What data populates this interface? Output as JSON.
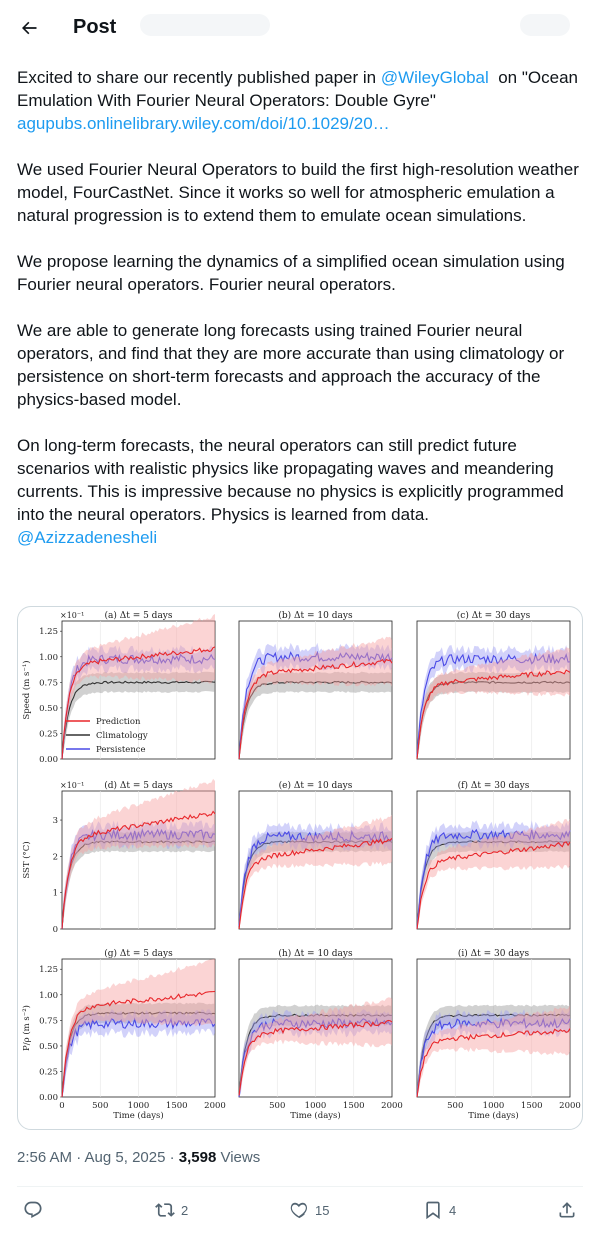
{
  "header": {
    "title": "Post"
  },
  "tweet": {
    "paragraphs": [
      {
        "parts": [
          {
            "t": "Excited to share our recently published paper in "
          },
          {
            "t": "@WileyGlobal",
            "link": true
          },
          {
            "t": "  on \"Ocean Emulation With Fourier Neural Operators: Double Gyre\"\n"
          },
          {
            "t": "agupubs.onlinelibrary.wiley.com/doi/10.1029/20…",
            "link": true
          }
        ]
      },
      {
        "parts": [
          {
            "t": "We used Fourier Neural Operators to build the first high-resolution weather model, FourCastNet. Since it works so well for atmospheric emulation a natural progression is to extend them to emulate ocean simulations."
          }
        ]
      },
      {
        "parts": [
          {
            "t": "We propose learning the dynamics of a simplified ocean simulation using Fourier neural operators. Fourier neural operators."
          }
        ]
      },
      {
        "parts": [
          {
            "t": "We are able to generate long forecasts using trained Fourier neural operators, and find that they are more accurate than using climatology or persistence on short-term forecasts and approach the accuracy of the physics-based model."
          }
        ]
      },
      {
        "parts": [
          {
            "t": "On long-term forecasts, the neural operators can still predict future scenarios with realistic physics like propagating waves and meandering currents. This is impressive because no physics is explicitly programmed into the neural operators. Physics is learned from data.\n"
          },
          {
            "t": "@Azizzadenesheli",
            "link": true
          }
        ]
      }
    ],
    "timestamp": "2:56 AM · Aug 5, 2025 · ",
    "views_count": "3,598",
    "views_label": " Views",
    "reply_count": "",
    "retweet_count": "2",
    "like_count": "15",
    "bookmark_count": "4"
  },
  "chart_data": {
    "type": "line",
    "xlabel": "Time (days)",
    "x_ticks": [
      "0",
      "500",
      "1000",
      "1500",
      "2000"
    ],
    "legend": [
      "Prediction",
      "Climatology",
      "Persistence"
    ],
    "colors": {
      "Prediction": "#e8262a",
      "Climatology": "#333333",
      "Persistence": "#4a4ae6"
    },
    "rows": [
      {
        "ylabel": "Speed (m s⁻¹)",
        "multiplier": "×10⁻¹",
        "yticks": [
          "0.00",
          "0.25",
          "0.50",
          "0.75",
          "1.00",
          "1.25"
        ],
        "ylim": [
          0,
          1.35
        ],
        "panels": [
          {
            "title": "(a) Δt = 5 days",
            "pred": 1.08,
            "clim": 0.75,
            "pers": 0.98
          },
          {
            "title": "(b) Δt = 10 days",
            "pred": 0.96,
            "clim": 0.75,
            "pers": 1.0
          },
          {
            "title": "(c) Δt = 30 days",
            "pred": 0.86,
            "clim": 0.75,
            "pers": 0.98
          }
        ]
      },
      {
        "ylabel": "SST (°C)",
        "multiplier": "×10⁻¹",
        "yticks": [
          "0",
          "1",
          "2",
          "3"
        ],
        "ylim": [
          0,
          3.8
        ],
        "panels": [
          {
            "title": "(d) Δt = 5 days",
            "pred": 3.2,
            "clim": 2.4,
            "pers": 2.6
          },
          {
            "title": "(e) Δt = 10 days",
            "pred": 2.45,
            "clim": 2.4,
            "pers": 2.55
          },
          {
            "title": "(f) Δt = 30 days",
            "pred": 2.35,
            "clim": 2.4,
            "pers": 2.6
          }
        ]
      },
      {
        "ylabel": "P/ρ (m s⁻²)",
        "multiplier": "",
        "yticks": [
          "0.00",
          "0.25",
          "0.50",
          "0.75",
          "1.00",
          "1.25"
        ],
        "ylim": [
          0,
          1.35
        ],
        "panels": [
          {
            "title": "(g) Δt = 5 days",
            "pred": 1.02,
            "clim": 0.82,
            "pers": 0.72
          },
          {
            "title": "(h) Δt = 10 days",
            "pred": 0.73,
            "clim": 0.8,
            "pers": 0.72
          },
          {
            "title": "(i) Δt = 30 days",
            "pred": 0.65,
            "clim": 0.8,
            "pers": 0.72
          }
        ]
      }
    ]
  }
}
